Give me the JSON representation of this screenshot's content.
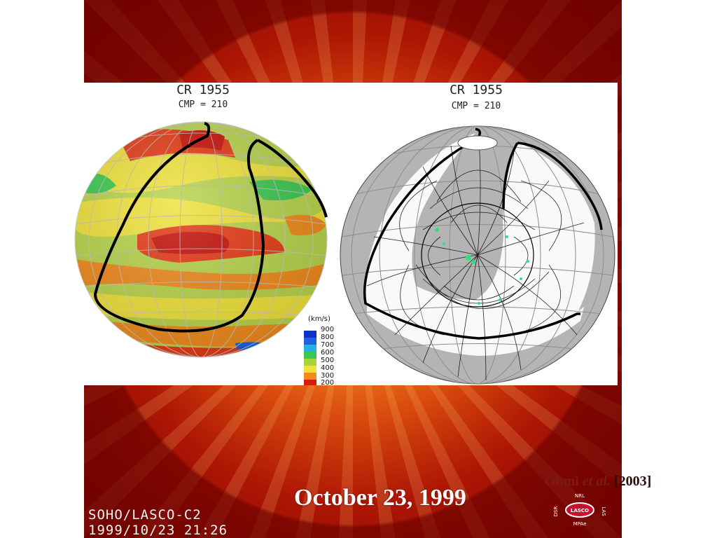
{
  "left_globe": {
    "title": "CR 1955",
    "subtitle": "CMP = 210",
    "legend": {
      "unit": "(km/s)",
      "levels": [
        {
          "label": "900",
          "color": "#1030c8"
        },
        {
          "label": "800",
          "color": "#1a62e0"
        },
        {
          "label": "700",
          "color": "#25b0e0"
        },
        {
          "label": "600",
          "color": "#3cc850"
        },
        {
          "label": "500",
          "color": "#a6d43a"
        },
        {
          "label": "400",
          "color": "#f0e23a"
        },
        {
          "label": "300",
          "color": "#f08a1c"
        },
        {
          "label": "200",
          "color": "#d81a10"
        }
      ]
    }
  },
  "right_globe": {
    "title": "CR 1955",
    "subtitle": "CMP = 210"
  },
  "caption": {
    "date": "October 23, 1999"
  },
  "citation": {
    "author": "Ohmi",
    "etal": "et al.",
    "year": "[2003]"
  },
  "image_stamp": {
    "line1": "SOHO/LASCO-C2",
    "line2": "1999/10/23 21:26"
  },
  "logo": {
    "top": "NRL",
    "center": "LASCO",
    "left": "DSR",
    "right": "LAS",
    "bottom": "MPAe"
  }
}
